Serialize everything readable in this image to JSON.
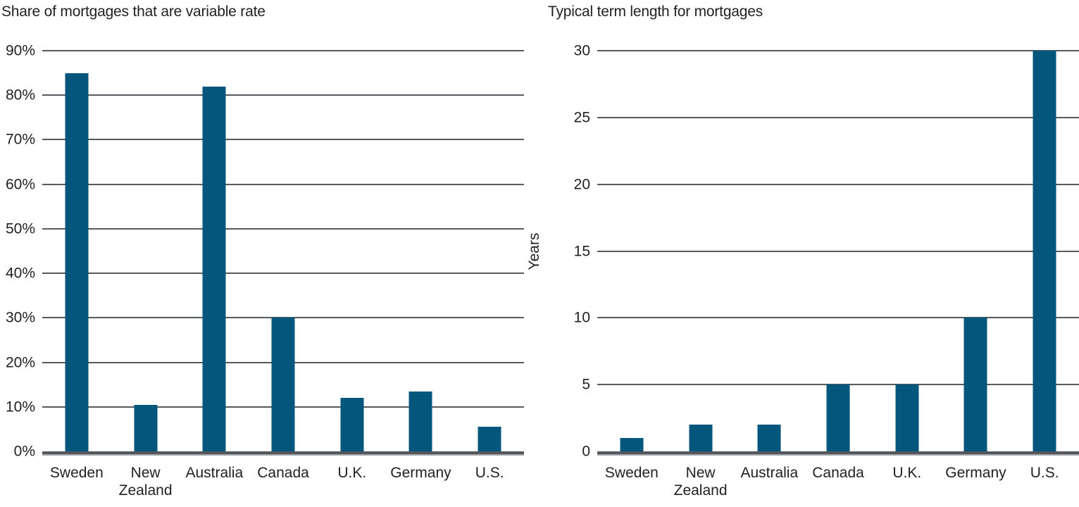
{
  "colors": {
    "bar": "#04567d",
    "gridline": "#555a61",
    "axis": "#54575c",
    "axis_shadow": "#a4a7ab",
    "text": "#231f20"
  },
  "chart_data": [
    {
      "type": "bar",
      "title": "Share of mortgages that are variable rate",
      "categories": [
        "Sweden",
        "New Zealand",
        "Australia",
        "Canada",
        "U.K.",
        "Germany",
        "U.S."
      ],
      "values": [
        85,
        10.5,
        82,
        30,
        12,
        13.5,
        5.5
      ],
      "xlabel": "",
      "ylabel": "",
      "ylim": [
        0,
        90
      ],
      "ytick_step": 10,
      "ytick_suffix": "%",
      "grid": true,
      "legend": "none"
    },
    {
      "type": "bar",
      "title": "Typical term length for mortgages",
      "categories": [
        "Sweden",
        "New Zealand",
        "Australia",
        "Canada",
        "U.K.",
        "Germany",
        "U.S."
      ],
      "values": [
        1,
        2,
        2,
        5,
        5,
        10,
        30
      ],
      "xlabel": "",
      "ylabel": "Years",
      "ylim": [
        0,
        30
      ],
      "ytick_step": 5,
      "ytick_suffix": "",
      "grid": true,
      "legend": "none"
    }
  ]
}
